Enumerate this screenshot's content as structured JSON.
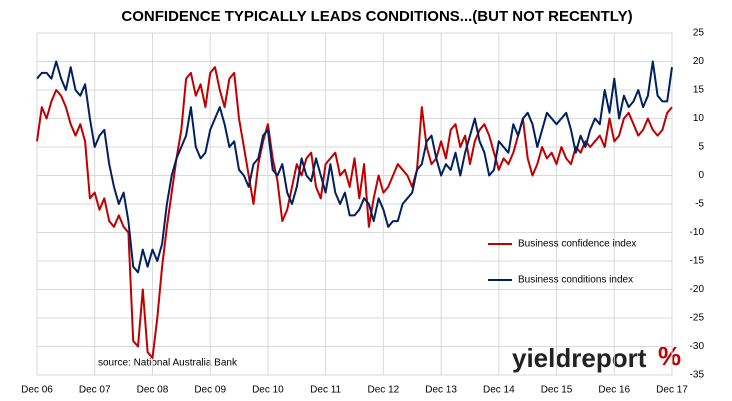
{
  "chart_data": {
    "type": "line",
    "title": "CONFIDENCE TYPICALLY LEADS CONDITIONS...(BUT NOT RECENTLY)",
    "source": "source: National Australia Bank",
    "watermark": "yieldreport",
    "watermark_symbol": "%",
    "categories": [
      "Dec 06",
      null,
      null,
      null,
      null,
      null,
      null,
      null,
      null,
      null,
      null,
      null,
      "Dec 07",
      null,
      null,
      null,
      null,
      null,
      null,
      null,
      null,
      null,
      null,
      null,
      "Dec 08",
      null,
      null,
      null,
      null,
      null,
      null,
      null,
      null,
      null,
      null,
      null,
      "Dec 09",
      null,
      null,
      null,
      null,
      null,
      null,
      null,
      null,
      null,
      null,
      null,
      "Dec 10",
      null,
      null,
      null,
      null,
      null,
      null,
      null,
      null,
      null,
      null,
      null,
      "Dec 11",
      null,
      null,
      null,
      null,
      null,
      null,
      null,
      null,
      null,
      null,
      null,
      "Dec 12",
      null,
      null,
      null,
      null,
      null,
      null,
      null,
      null,
      null,
      null,
      null,
      "Dec 13",
      null,
      null,
      null,
      null,
      null,
      null,
      null,
      null,
      null,
      null,
      null,
      "Dec 14",
      null,
      null,
      null,
      null,
      null,
      null,
      null,
      null,
      null,
      null,
      null,
      "Dec 15",
      null,
      null,
      null,
      null,
      null,
      null,
      null,
      null,
      null,
      null,
      null,
      "Dec 16",
      null,
      null,
      null,
      null,
      null,
      null,
      null,
      null,
      null,
      null,
      null,
      "Dec 17"
    ],
    "series": [
      {
        "name": "Business confidence index",
        "color": "#c00000",
        "values": [
          6,
          12,
          10,
          13,
          15,
          14,
          12,
          9,
          7,
          9,
          6,
          -4,
          -3,
          -6,
          -4,
          -8,
          -9,
          -7,
          -9,
          -10,
          -29,
          -30,
          -20,
          -31,
          -32,
          -25,
          -16,
          -9,
          -3,
          3,
          8,
          17,
          18,
          14,
          16,
          12,
          18,
          19,
          15,
          12,
          17,
          18,
          10,
          5,
          0,
          -5,
          2,
          6,
          9,
          3,
          -1,
          -8,
          -6,
          -2,
          2,
          0,
          3,
          4,
          -2,
          -4,
          2,
          3,
          4,
          0,
          1,
          -2,
          3,
          -4,
          2,
          -9,
          -4,
          0,
          -3,
          -2,
          0,
          2,
          1,
          0,
          -2,
          1,
          12,
          5,
          2,
          3,
          6,
          3,
          8,
          9,
          5,
          7,
          2,
          6,
          8,
          9,
          7,
          4,
          1,
          3,
          2,
          4,
          7,
          10,
          3,
          0,
          2,
          5,
          3,
          4,
          2,
          5,
          3,
          2,
          5,
          4,
          6,
          5,
          6,
          7,
          5,
          10,
          6,
          7,
          10,
          11,
          9,
          7,
          8,
          10,
          8,
          7,
          8,
          11,
          12
        ]
      },
      {
        "name": "Business conditions index",
        "color": "#002060",
        "values": [
          17,
          18,
          18,
          17,
          20,
          17,
          15,
          19,
          15,
          14,
          16,
          10,
          5,
          7,
          8,
          2,
          -2,
          -5,
          -3,
          -8,
          -16,
          -17,
          -13,
          -16,
          -13,
          -15,
          -12,
          -5,
          0,
          3,
          5,
          7,
          12,
          5,
          3,
          4,
          8,
          10,
          12,
          9,
          5,
          6,
          1,
          0,
          -2,
          2,
          3,
          7,
          8,
          1,
          0,
          2,
          -3,
          -5,
          -2,
          3,
          0,
          -1,
          3,
          0,
          -3,
          2,
          -3,
          -5,
          -3,
          -7,
          -7,
          -6,
          -4,
          -5,
          -8,
          -4,
          -6,
          -9,
          -8,
          -8,
          -5,
          -4,
          -3,
          1,
          2,
          6,
          7,
          3,
          0,
          2,
          1,
          4,
          0,
          4,
          7,
          10,
          6,
          4,
          0,
          1,
          6,
          5,
          4,
          9,
          7,
          10,
          11,
          9,
          5,
          8,
          11,
          10,
          9,
          10,
          11,
          8,
          4,
          7,
          5,
          8,
          10,
          9,
          15,
          11,
          17,
          10,
          14,
          12,
          13,
          15,
          12,
          14,
          20,
          14,
          13,
          13,
          19
        ]
      }
    ],
    "ylim": [
      -35,
      25
    ],
    "yticks": [
      -35,
      -30,
      -25,
      -20,
      -15,
      -10,
      -5,
      0,
      5,
      10,
      15,
      20,
      25
    ],
    "grid": true
  }
}
